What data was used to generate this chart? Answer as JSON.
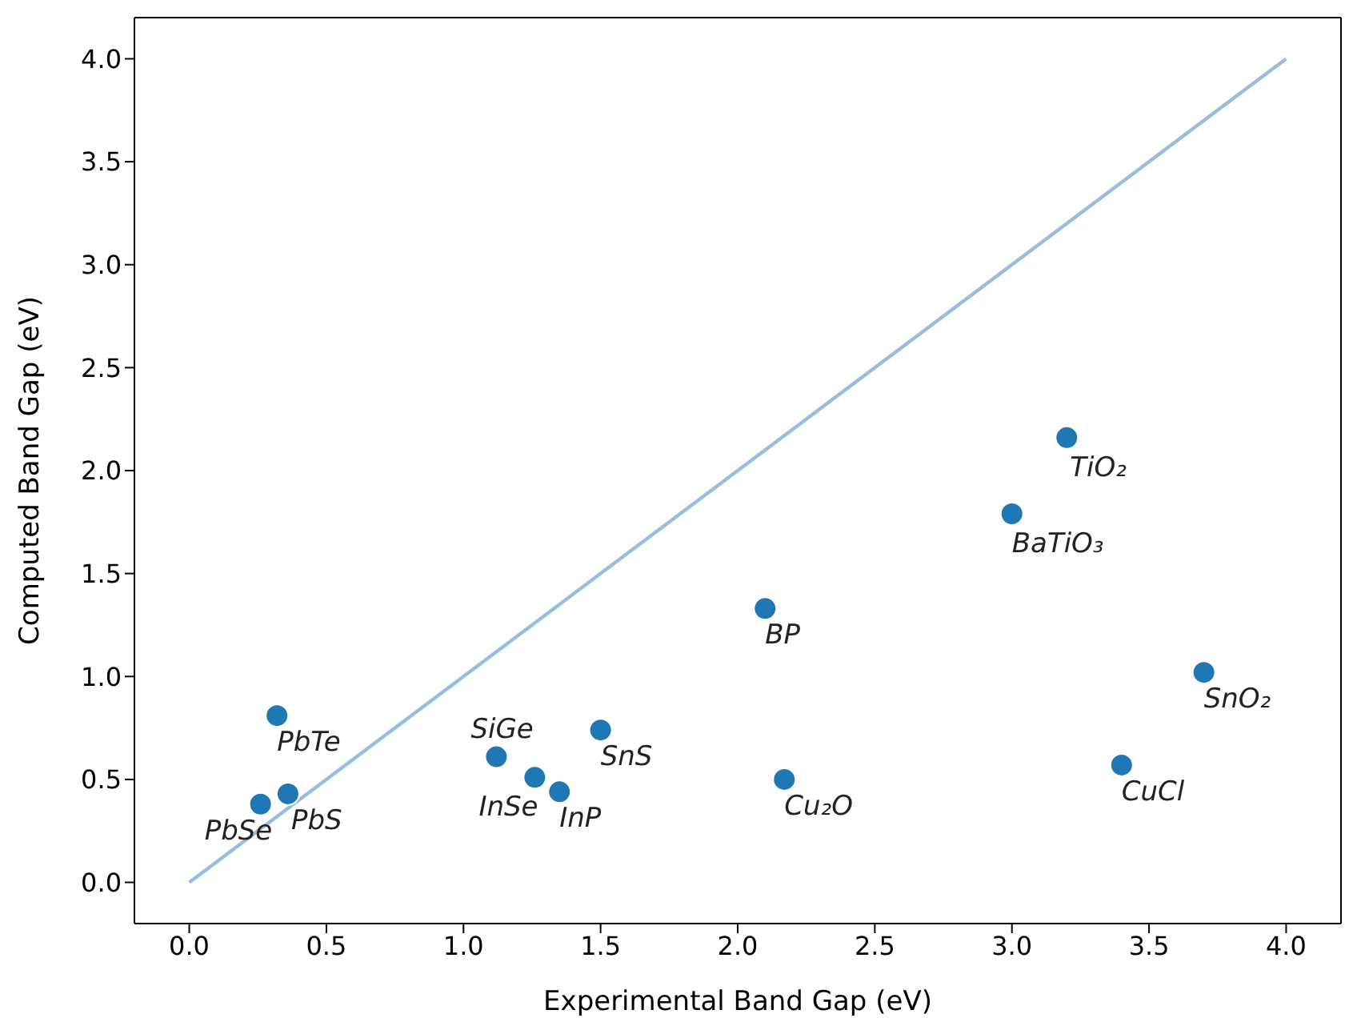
{
  "chart_data": {
    "type": "scatter",
    "xlabel": "Experimental Band Gap (eV)",
    "ylabel": "Computed Band Gap (eV)",
    "xlim": [
      -0.2,
      4.2
    ],
    "ylim": [
      -0.2,
      4.2
    ],
    "xticks": [
      {
        "value": 0,
        "label": "0.0"
      },
      {
        "value": 0.5,
        "label": "0.5"
      },
      {
        "value": 1,
        "label": "1.0"
      },
      {
        "value": 1.5,
        "label": "1.5"
      },
      {
        "value": 2,
        "label": "2.0"
      },
      {
        "value": 2.5,
        "label": "2.5"
      },
      {
        "value": 3,
        "label": "3.0"
      },
      {
        "value": 3.5,
        "label": "3.5"
      },
      {
        "value": 4,
        "label": "4.0"
      }
    ],
    "yticks": [
      {
        "value": 0,
        "label": "0.0"
      },
      {
        "value": 0.5,
        "label": "0.5"
      },
      {
        "value": 1,
        "label": "1.0"
      },
      {
        "value": 1.5,
        "label": "1.5"
      },
      {
        "value": 2,
        "label": "2.0"
      },
      {
        "value": 2.5,
        "label": "2.5"
      },
      {
        "value": 3,
        "label": "3.0"
      },
      {
        "value": 3.5,
        "label": "3.5"
      },
      {
        "value": 4,
        "label": "4.0"
      }
    ],
    "grid": false,
    "marker": "circle",
    "series": [
      {
        "type": "line",
        "color": "#94bfe0",
        "x": [
          0,
          4
        ],
        "values": [
          0,
          4
        ],
        "marker": "none"
      },
      {
        "color": "#1f77b4",
        "x": [
          0.26,
          0.36,
          0.32,
          1.12,
          1.26,
          1.35,
          1.5,
          2.1,
          2.17,
          3.0,
          3.2,
          3.4,
          3.7
        ],
        "values": [
          0.38,
          0.43,
          0.81,
          0.61,
          0.51,
          0.44,
          0.74,
          1.33,
          0.5,
          1.79,
          2.16,
          0.57,
          1.02
        ]
      }
    ],
    "annotations": [
      {
        "text": "PbSe",
        "x": 0.26,
        "y": 0.38
      },
      {
        "text": "PbS",
        "x": 0.36,
        "y": 0.43
      },
      {
        "text": "PbTe",
        "x": 0.32,
        "y": 0.81
      },
      {
        "text": "SiGe",
        "x": 1.12,
        "y": 0.61
      },
      {
        "text": "InSe",
        "x": 1.26,
        "y": 0.51
      },
      {
        "text": "InP",
        "x": 1.35,
        "y": 0.44
      },
      {
        "text": "SnS",
        "x": 1.5,
        "y": 0.74
      },
      {
        "text": "BP",
        "x": 2.1,
        "y": 1.33
      },
      {
        "text": "Cu₂O",
        "x": 2.17,
        "y": 0.5
      },
      {
        "text": "BaTiO₃",
        "x": 3.0,
        "y": 1.79
      },
      {
        "text": "TiO₂",
        "x": 3.2,
        "y": 2.16
      },
      {
        "text": "CuCl",
        "x": 3.4,
        "y": 0.57
      },
      {
        "text": "SnO₂",
        "x": 3.7,
        "y": 1.02
      }
    ]
  }
}
